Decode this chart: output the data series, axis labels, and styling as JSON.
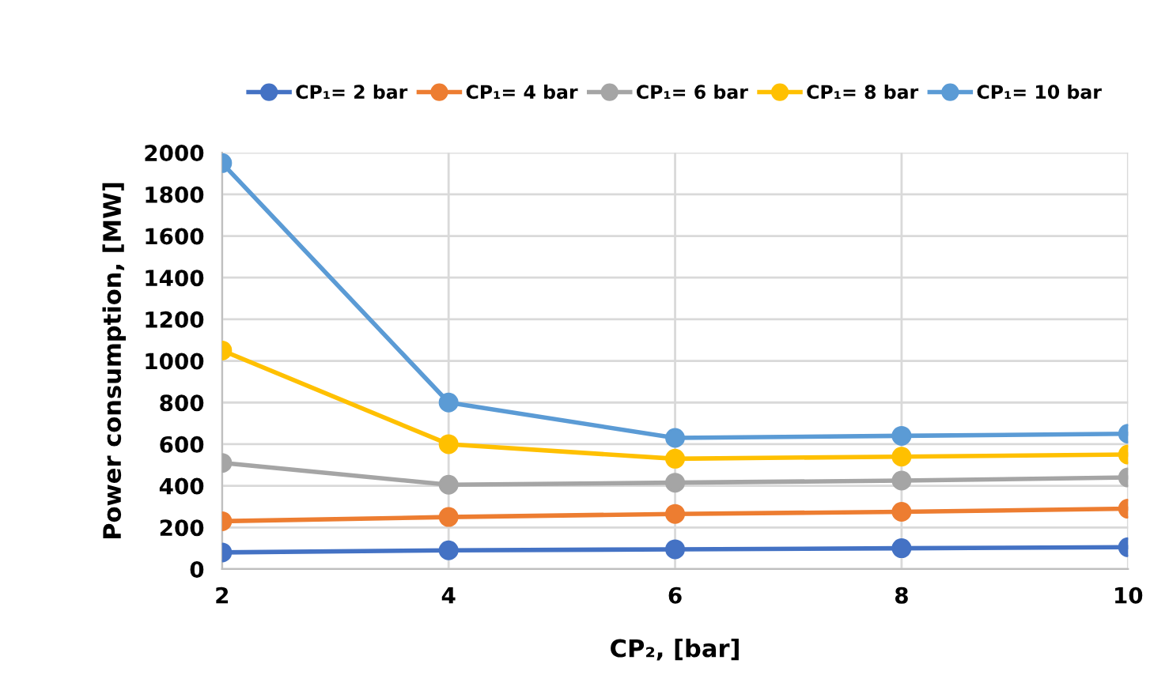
{
  "chart_data": {
    "type": "line",
    "xlabel": "CP₂, [bar]",
    "ylabel": "Power consumption, [MW]",
    "x": [
      2,
      4,
      6,
      8,
      10
    ],
    "xlim": [
      2,
      10
    ],
    "xticks": [
      2,
      4,
      6,
      8,
      10
    ],
    "ylim": [
      0,
      2000
    ],
    "yticks": [
      0,
      200,
      400,
      600,
      800,
      1000,
      1200,
      1400,
      1600,
      1800,
      2000
    ],
    "grid": true,
    "legend": "top",
    "marker": "circle",
    "line_style": "solid",
    "series": [
      {
        "name": "CP₁= 2 bar",
        "color": "#4472c4",
        "values": [
          80,
          90,
          95,
          100,
          105
        ]
      },
      {
        "name": "CP₁= 4 bar",
        "color": "#ed7d31",
        "values": [
          230,
          250,
          265,
          275,
          290
        ]
      },
      {
        "name": "CP₁= 6 bar",
        "color": "#a5a5a5",
        "values": [
          510,
          405,
          415,
          425,
          440
        ]
      },
      {
        "name": "CP₁= 8 bar",
        "color": "#ffc000",
        "values": [
          1050,
          600,
          530,
          540,
          550
        ]
      },
      {
        "name": "CP₁= 10 bar",
        "color": "#5b9bd5",
        "values": [
          1950,
          800,
          630,
          640,
          650
        ]
      }
    ]
  }
}
